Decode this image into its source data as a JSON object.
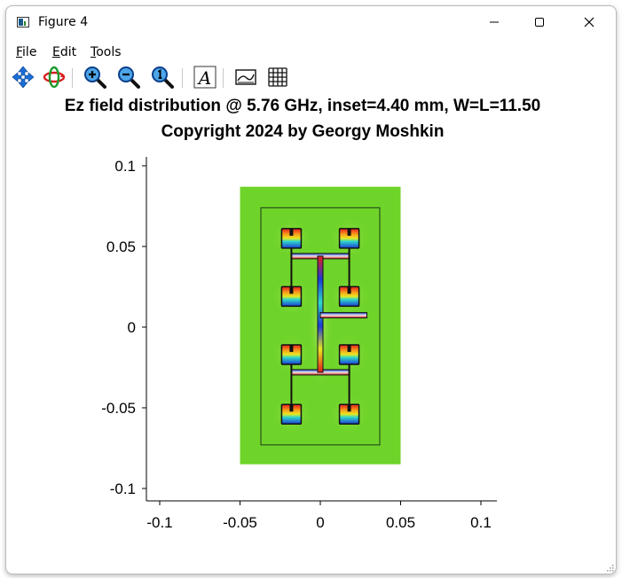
{
  "window": {
    "title": "Figure 4"
  },
  "menu": {
    "file": "File",
    "edit": "Edit",
    "tools": "Tools"
  },
  "toolbar": {
    "icons": [
      "pan-icon",
      "rotate-icon",
      "zoom-in-icon",
      "zoom-out-icon",
      "zoom-reset-icon",
      "text-icon",
      "legend-icon",
      "grid-icon"
    ]
  },
  "chart_data": {
    "type": "heatmap",
    "title_line1": "Ez field distribution @ 5.76 GHz, inset=4.40 mm, W=L=11.50",
    "title_line2": "Copyright 2024 by Georgy Moshkin",
    "xlim": [
      -0.11,
      0.11
    ],
    "ylim": [
      -0.11,
      0.11
    ],
    "xticks": [
      -0.1,
      -0.05,
      0,
      0.05,
      0.1
    ],
    "xtick_labels": [
      "-0.1",
      "-0.05",
      "0",
      "0.05",
      "0.1"
    ],
    "yticks": [
      0.1,
      0.05,
      0,
      -0.05,
      -0.1
    ],
    "ytick_labels": [
      "0.1",
      "0.05",
      "0",
      "-0.05",
      "-0.1"
    ],
    "grid": false,
    "substrate": {
      "x": [
        -0.05,
        0.05
      ],
      "y": [
        -0.085,
        0.087
      ]
    },
    "ground_outline": {
      "x": [
        -0.037,
        0.037
      ],
      "y": [
        -0.073,
        0.074
      ]
    },
    "patches": [
      {
        "x": -0.018,
        "y": 0.055
      },
      {
        "x": 0.018,
        "y": 0.055
      },
      {
        "x": -0.018,
        "y": 0.019
      },
      {
        "x": 0.018,
        "y": 0.019
      },
      {
        "x": -0.018,
        "y": -0.017
      },
      {
        "x": 0.018,
        "y": -0.017
      },
      {
        "x": -0.018,
        "y": -0.054
      },
      {
        "x": 0.018,
        "y": -0.054
      }
    ],
    "colors": {
      "background": "#6fd42a",
      "field_high": "#e81c1c",
      "field_low": "#1c3cd8"
    }
  }
}
